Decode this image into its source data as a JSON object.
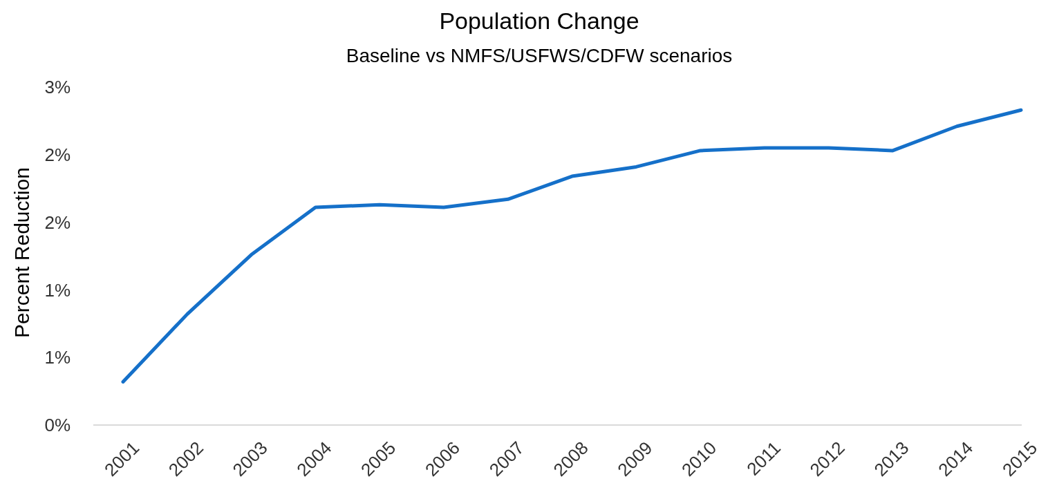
{
  "chart_data": {
    "type": "line",
    "title": "Population Change",
    "subtitle": "Baseline vs NMFS/USFWS/CDFW scenarios",
    "ylabel": "Percent Reduction",
    "categories": [
      "2001",
      "2002",
      "2003",
      "2004",
      "2005",
      "2006",
      "2007",
      "2008",
      "2009",
      "2010",
      "2011",
      "2012",
      "2013",
      "2014",
      "2015"
    ],
    "series": [
      {
        "color": "#1570c9",
        "values": [
          0.32,
          0.82,
          1.26,
          1.61,
          1.63,
          1.61,
          1.67,
          1.84,
          1.91,
          2.03,
          2.05,
          2.05,
          2.03,
          2.21,
          2.33
        ]
      }
    ],
    "ylim": [
      0,
      2.5
    ],
    "yticks": [
      {
        "value": 0,
        "label": "0%"
      },
      {
        "value": 0.5,
        "label": "1%"
      },
      {
        "value": 1,
        "label": "1%"
      },
      {
        "value": 1.5,
        "label": "2%"
      },
      {
        "value": 2,
        "label": "2%"
      },
      {
        "value": 2.5,
        "label": "3%"
      }
    ],
    "grid": false,
    "line_style": "solid"
  }
}
